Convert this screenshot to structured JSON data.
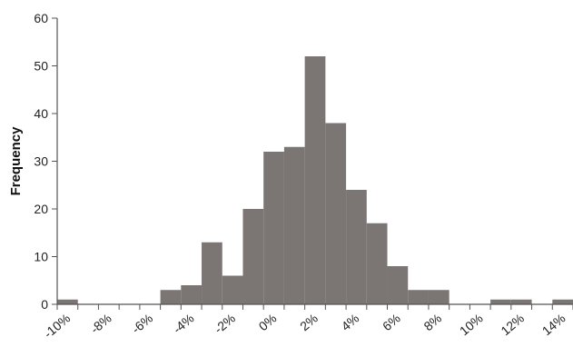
{
  "chart_data": {
    "type": "bar",
    "title": "",
    "xlabel": "",
    "ylabel": "Frequency",
    "ylim": [
      0,
      60
    ],
    "xlim": [
      -10.5,
      14.5
    ],
    "yticks": [
      "0",
      "10",
      "20",
      "30",
      "40",
      "50",
      "60"
    ],
    "xticks": [
      "-10%",
      "-8%",
      "-6%",
      "-4%",
      "-2%",
      "0%",
      "2%",
      "4%",
      "6%",
      "8%",
      "10%",
      "12%",
      "14%"
    ],
    "bin_width_percent": 1,
    "bins": [
      {
        "start": -10.5,
        "value": 1
      },
      {
        "start": -9.5,
        "value": 0
      },
      {
        "start": -8.5,
        "value": 0
      },
      {
        "start": -7.5,
        "value": 0
      },
      {
        "start": -6.5,
        "value": 0
      },
      {
        "start": -5.5,
        "value": 3
      },
      {
        "start": -4.5,
        "value": 4
      },
      {
        "start": -3.5,
        "value": 13
      },
      {
        "start": -2.5,
        "value": 6
      },
      {
        "start": -1.5,
        "value": 20
      },
      {
        "start": -0.5,
        "value": 32
      },
      {
        "start": 0.5,
        "value": 33
      },
      {
        "start": 1.5,
        "value": 52
      },
      {
        "start": 2.5,
        "value": 38
      },
      {
        "start": 3.5,
        "value": 24
      },
      {
        "start": 4.5,
        "value": 17
      },
      {
        "start": 5.5,
        "value": 8
      },
      {
        "start": 6.5,
        "value": 3
      },
      {
        "start": 7.5,
        "value": 3
      },
      {
        "start": 8.5,
        "value": 0
      },
      {
        "start": 9.5,
        "value": 0
      },
      {
        "start": 10.5,
        "value": 1
      },
      {
        "start": 11.5,
        "value": 1
      },
      {
        "start": 12.5,
        "value": 0
      },
      {
        "start": 13.5,
        "value": 1
      }
    ],
    "grid": false,
    "colors": {
      "bar": "#7b7573",
      "axis": "#555555"
    }
  }
}
